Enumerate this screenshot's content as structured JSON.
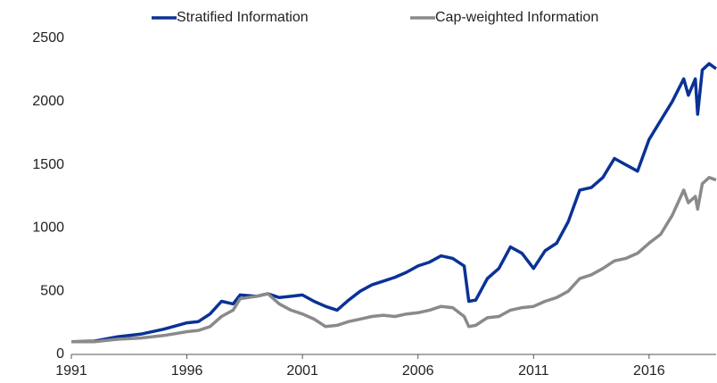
{
  "chart_data": {
    "type": "line",
    "x": [
      1991,
      1992,
      1993,
      1994,
      1995,
      1996,
      1996.5,
      1997,
      1997.5,
      1998,
      1998.3,
      1999,
      1999.5,
      2000,
      2000.5,
      2001,
      2001.5,
      2002,
      2002.5,
      2003,
      2003.5,
      2004,
      2004.5,
      2005,
      2005.5,
      2006,
      2006.5,
      2007,
      2007.5,
      2008,
      2008.2,
      2008.5,
      2009,
      2009.5,
      2010,
      2010.5,
      2011,
      2011.5,
      2012,
      2012.5,
      2013,
      2013.5,
      2014,
      2014.5,
      2015,
      2015.5,
      2016,
      2016.5,
      2017,
      2017.5,
      2017.7,
      2018,
      2018.1,
      2018.3,
      2018.6,
      2018.9
    ],
    "series": [
      {
        "name": "Stratified Information",
        "color": "#0a3296",
        "values": [
          100,
          105,
          140,
          160,
          200,
          250,
          260,
          320,
          420,
          400,
          470,
          460,
          480,
          450,
          460,
          470,
          420,
          380,
          350,
          430,
          500,
          550,
          580,
          610,
          650,
          700,
          730,
          780,
          760,
          700,
          420,
          430,
          600,
          680,
          850,
          800,
          680,
          820,
          880,
          1050,
          1300,
          1320,
          1400,
          1550,
          1500,
          1450,
          1700,
          1850,
          2000,
          2180,
          2050,
          2180,
          1900,
          2250,
          2300,
          2260
        ]
      },
      {
        "name": "Cap-weighted Information",
        "color": "#8a8a8a",
        "values": [
          100,
          100,
          120,
          130,
          150,
          180,
          190,
          220,
          300,
          350,
          440,
          460,
          480,
          400,
          350,
          320,
          280,
          220,
          230,
          260,
          280,
          300,
          310,
          300,
          320,
          330,
          350,
          380,
          370,
          300,
          220,
          230,
          290,
          300,
          350,
          370,
          380,
          420,
          450,
          500,
          600,
          630,
          680,
          740,
          760,
          800,
          880,
          950,
          1100,
          1300,
          1200,
          1250,
          1150,
          1350,
          1400,
          1380
        ]
      }
    ],
    "xlim": [
      1991,
      2018.9
    ],
    "xticks": [
      1991,
      1996,
      2001,
      2006,
      2011,
      2016
    ],
    "ylim": [
      0,
      2500
    ],
    "yticks": [
      0,
      500,
      1000,
      1500,
      2000,
      2500
    ],
    "grid": false,
    "legend": "top"
  }
}
